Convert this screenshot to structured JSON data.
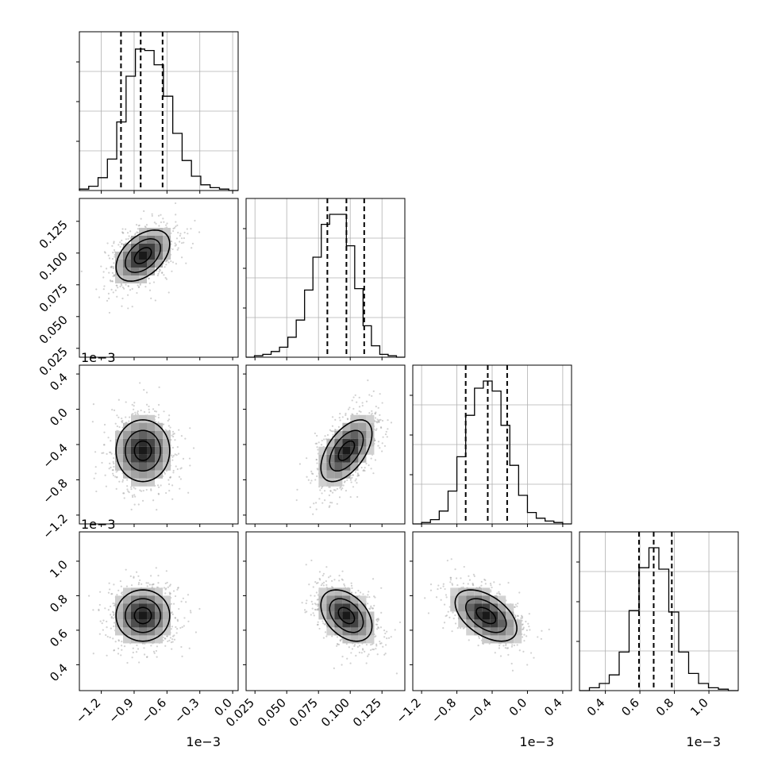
{
  "chart_data": {
    "type": "corner",
    "n_params": 4,
    "grid": true,
    "params": [
      {
        "range": [
          -1.4,
          0.05
        ],
        "scale_label": "1e−3",
        "ticks": [
          -1.2,
          -0.9,
          -0.6,
          -0.3,
          0.0
        ],
        "tick_labels": [
          "−1.2",
          "−0.9",
          "−0.6",
          "−0.3",
          "0.0"
        ],
        "quantiles": [
          -1.02,
          -0.84,
          -0.64
        ],
        "hist_counts": [
          1,
          3,
          9,
          22,
          48,
          80,
          99,
          98,
          88,
          66,
          40,
          21,
          10,
          4,
          2,
          1,
          0
        ]
      },
      {
        "range": [
          0.018,
          0.143
        ],
        "scale_label": "",
        "ticks": [
          0.025,
          0.05,
          0.075,
          0.1,
          0.125
        ],
        "tick_labels": [
          "0.025",
          "0.050",
          "0.075",
          "0.100",
          "0.125"
        ],
        "quantiles": [
          0.082,
          0.097,
          0.111
        ],
        "hist_counts": [
          0,
          1,
          2,
          4,
          7,
          14,
          26,
          47,
          70,
          93,
          100,
          100,
          78,
          48,
          22,
          8,
          2,
          1,
          0
        ]
      },
      {
        "range": [
          -1.3,
          0.5
        ],
        "scale_label": "1e−3",
        "ticks": [
          -1.2,
          -0.8,
          -0.4,
          0.0,
          0.4
        ],
        "tick_labels": [
          "−1.2",
          "−0.8",
          "−0.4",
          "0.0",
          "0.4"
        ],
        "quantiles": [
          -0.7,
          -0.45,
          -0.23
        ],
        "hist_counts": [
          0,
          1,
          3,
          9,
          23,
          47,
          76,
          95,
          100,
          93,
          69,
          41,
          20,
          8,
          4,
          2,
          1,
          0
        ]
      },
      {
        "range": [
          0.25,
          1.17
        ],
        "scale_label": "1e−3",
        "ticks": [
          0.4,
          0.6,
          0.8,
          1.0
        ],
        "tick_labels": [
          "0.4",
          "0.6",
          "0.8",
          "1.0"
        ],
        "quantiles": [
          0.595,
          0.68,
          0.785
        ],
        "hist_counts": [
          0,
          2,
          5,
          11,
          27,
          56,
          86,
          100,
          85,
          55,
          27,
          12,
          5,
          2,
          1,
          0
        ]
      }
    ],
    "pairs": [
      {
        "row": 1,
        "col": 0,
        "mean": [
          -0.82,
          0.098
        ],
        "sd": [
          0.14,
          0.0115
        ],
        "corr": 0.45
      },
      {
        "row": 2,
        "col": 0,
        "mean": [
          -0.82,
          -0.47
        ],
        "sd": [
          0.14,
          0.2
        ],
        "corr": 0.0
      },
      {
        "row": 2,
        "col": 1,
        "mean": [
          0.097,
          -0.47
        ],
        "sd": [
          0.0115,
          0.2
        ],
        "corr": 0.55
      },
      {
        "row": 3,
        "col": 0,
        "mean": [
          -0.82,
          0.685
        ],
        "sd": [
          0.14,
          0.085
        ],
        "corr": 0.0
      },
      {
        "row": 3,
        "col": 1,
        "mean": [
          0.097,
          0.685
        ],
        "sd": [
          0.0115,
          0.085
        ],
        "corr": -0.4
      },
      {
        "row": 3,
        "col": 2,
        "mean": [
          -0.47,
          0.685
        ],
        "sd": [
          0.2,
          0.085
        ],
        "corr": -0.5
      }
    ]
  }
}
